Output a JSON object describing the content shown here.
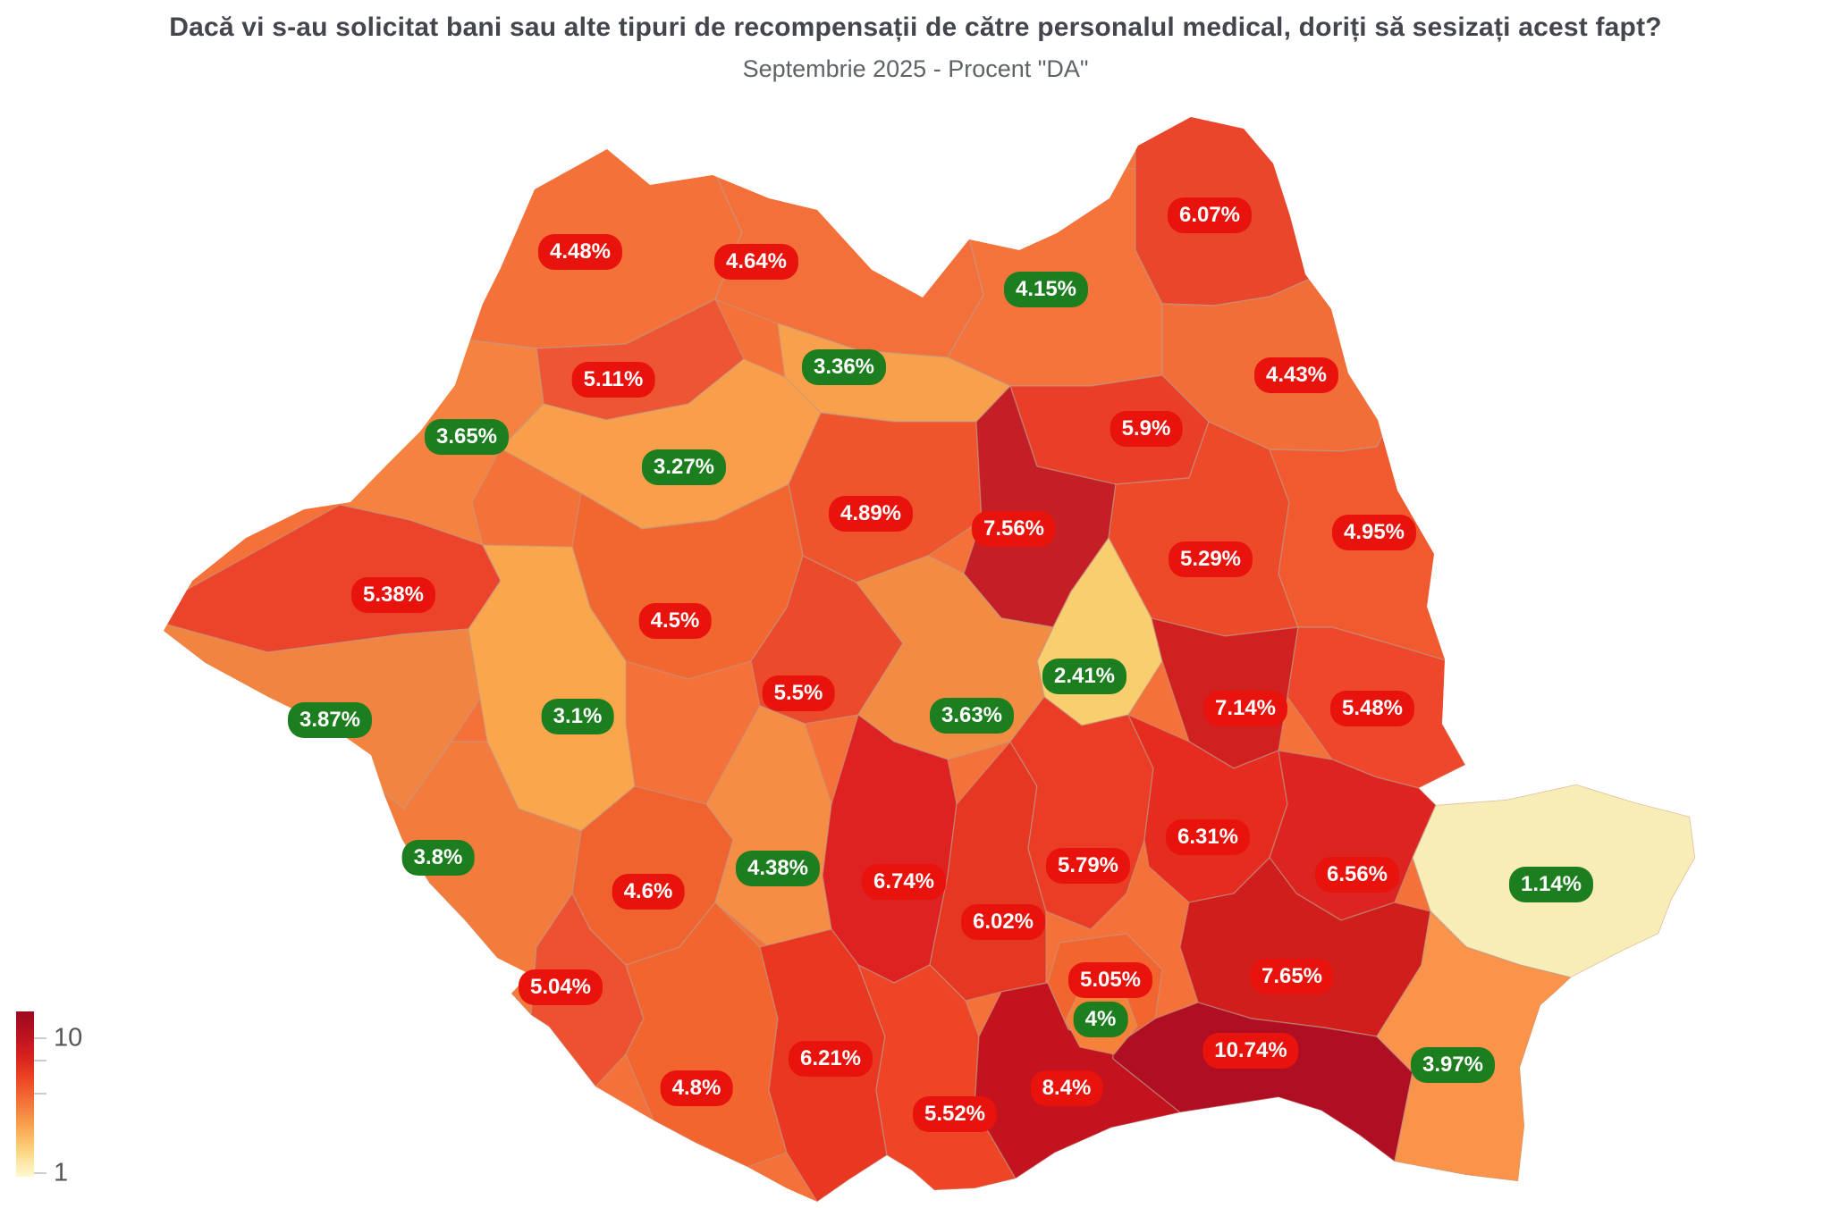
{
  "chart_data": {
    "type": "heatmap",
    "subtype": "choropleth-map",
    "geography": "Romania - judete (counties)",
    "title": "Dacă vi s-au solicitat bani sau alte tipuri de recompensații de către personalul medical, doriți să sesizați acest fapt?",
    "subtitle": "Septembrie 2025 - Procent \"DA\"",
    "unit": "%",
    "background": "#ffffff",
    "badge_colors": {
      "red": "#E8130D",
      "green": "#1C7E1F"
    },
    "legend": {
      "max_label": "10",
      "min_label": "1",
      "gradient_stops": [
        {
          "pos": 0,
          "color": "#9C0A21"
        },
        {
          "pos": 0.06,
          "color": "#A90D20"
        },
        {
          "pos": 0.16,
          "color": "#C01420"
        },
        {
          "pos": 0.28,
          "color": "#D8231E"
        },
        {
          "pos": 0.41,
          "color": "#EE4623"
        },
        {
          "pos": 0.56,
          "color": "#F4763A"
        },
        {
          "pos": 0.71,
          "color": "#F9A952"
        },
        {
          "pos": 0.83,
          "color": "#FCCF7A"
        },
        {
          "pos": 0.92,
          "color": "#FEE9A9"
        },
        {
          "pos": 1,
          "color": "#FEF7D0"
        }
      ],
      "ticks": [
        {
          "pos": 0.162,
          "label": "10"
        },
        {
          "pos": 0.297,
          "label": ""
        },
        {
          "pos": 0.497,
          "label": ""
        },
        {
          "pos": 0.978,
          "label": "1"
        }
      ]
    },
    "regions": [
      {
        "id": "sm",
        "county": "Satu Mare",
        "value": 4.48,
        "label": "4.48%",
        "badge": "red",
        "fill": "#F4713A"
      },
      {
        "id": "mm",
        "county": "Maramureș",
        "value": 4.64,
        "label": "4.64%",
        "badge": "red",
        "fill": "#F3703A"
      },
      {
        "id": "sv",
        "county": "Suceava",
        "value": 4.15,
        "label": "4.15%",
        "badge": "green",
        "fill": "#F4743C"
      },
      {
        "id": "bt",
        "county": "Botoșani",
        "value": 6.07,
        "label": "6.07%",
        "badge": "red",
        "fill": "#E9462C"
      },
      {
        "id": "is",
        "county": "Iași",
        "value": 4.43,
        "label": "4.43%",
        "badge": "red",
        "fill": "#F26E38"
      },
      {
        "id": "nt",
        "county": "Neamț",
        "value": 5.9,
        "label": "5.9%",
        "badge": "red",
        "fill": "#E93F28"
      },
      {
        "id": "bn",
        "county": "Bistrița-Năsăud",
        "value": 3.36,
        "label": "3.36%",
        "badge": "green",
        "fill": "#F9A04C"
      },
      {
        "id": "sj",
        "county": "Sălaj",
        "value": 5.11,
        "label": "5.11%",
        "badge": "red",
        "fill": "#EE5532"
      },
      {
        "id": "bh",
        "county": "Bihor",
        "value": 3.65,
        "label": "3.65%",
        "badge": "green",
        "fill": "#F5823F"
      },
      {
        "id": "cj",
        "county": "Cluj",
        "value": 3.27,
        "label": "3.27%",
        "badge": "green",
        "fill": "#F99F4B"
      },
      {
        "id": "ms",
        "county": "Mureș",
        "value": 4.89,
        "label": "4.89%",
        "badge": "red",
        "fill": "#EF552C"
      },
      {
        "id": "hr",
        "county": "Harghita",
        "value": 7.56,
        "label": "7.56%",
        "badge": "red",
        "fill": "#C41F26"
      },
      {
        "id": "bc",
        "county": "Bacău",
        "value": 5.29,
        "label": "5.29%",
        "badge": "red",
        "fill": "#ED4A2A"
      },
      {
        "id": "vs",
        "county": "Vaslui",
        "value": 4.95,
        "label": "4.95%",
        "badge": "red",
        "fill": "#F05A2E"
      },
      {
        "id": "ar",
        "county": "Arad",
        "value": 5.38,
        "label": "5.38%",
        "badge": "red",
        "fill": "#EC432B"
      },
      {
        "id": "ab",
        "county": "Alba",
        "value": 4.5,
        "label": "4.5%",
        "badge": "red",
        "fill": "#F2672F"
      },
      {
        "id": "cv",
        "county": "Covasna",
        "value": 2.41,
        "label": "2.41%",
        "badge": "green",
        "fill": "#F8CE6F"
      },
      {
        "id": "sb",
        "county": "Sibiu",
        "value": 5.5,
        "label": "5.5%",
        "badge": "red",
        "fill": "#EB4A2B"
      },
      {
        "id": "bv",
        "county": "Brașov",
        "value": 3.63,
        "label": "3.63%",
        "badge": "green",
        "fill": "#F28C42"
      },
      {
        "id": "vn",
        "county": "Vrancea",
        "value": 7.14,
        "label": "7.14%",
        "badge": "red",
        "fill": "#D02020"
      },
      {
        "id": "gl",
        "county": "Galați",
        "value": 5.48,
        "label": "5.48%",
        "badge": "red",
        "fill": "#EF472B"
      },
      {
        "id": "tm",
        "county": "Timiș",
        "value": 3.87,
        "label": "3.87%",
        "badge": "green",
        "fill": "#F28441"
      },
      {
        "id": "hd",
        "county": "Hunedoara",
        "value": 3.1,
        "label": "3.1%",
        "badge": "green",
        "fill": "#F9A64C"
      },
      {
        "id": "cs",
        "county": "Caraș-Severin",
        "value": 3.8,
        "label": "3.8%",
        "badge": "green",
        "fill": "#F37C3D"
      },
      {
        "id": "gj",
        "county": "Gorj",
        "value": 4.6,
        "label": "4.6%",
        "badge": "red",
        "fill": "#F0632F"
      },
      {
        "id": "vl",
        "county": "Vâlcea",
        "value": 4.38,
        "label": "4.38%",
        "badge": "green",
        "fill": "#F68D44"
      },
      {
        "id": "ag",
        "county": "Argeș",
        "value": 6.74,
        "label": "6.74%",
        "badge": "red",
        "fill": "#DE2121"
      },
      {
        "id": "db",
        "county": "Dâmbovița",
        "value": 6.02,
        "label": "6.02%",
        "badge": "red",
        "fill": "#E63722"
      },
      {
        "id": "ph",
        "county": "Prahova",
        "value": 5.79,
        "label": "5.79%",
        "badge": "red",
        "fill": "#EB3D25"
      },
      {
        "id": "bz",
        "county": "Buzău",
        "value": 6.31,
        "label": "6.31%",
        "badge": "red",
        "fill": "#E52C1E"
      },
      {
        "id": "br",
        "county": "Brăila",
        "value": 6.56,
        "label": "6.56%",
        "badge": "red",
        "fill": "#DC2520"
      },
      {
        "id": "tl",
        "county": "Tulcea",
        "value": 1.14,
        "label": "1.14%",
        "badge": "green",
        "fill": "#F8ECB7"
      },
      {
        "id": "mh",
        "county": "Mehedinți",
        "value": 5.04,
        "label": "5.04%",
        "badge": "red",
        "fill": "#EE5130"
      },
      {
        "id": "dj",
        "county": "Dolj",
        "value": 4.8,
        "label": "4.8%",
        "badge": "red",
        "fill": "#F2652F"
      },
      {
        "id": "ot",
        "county": "Olt",
        "value": 6.21,
        "label": "6.21%",
        "badge": "red",
        "fill": "#E93722"
      },
      {
        "id": "tr",
        "county": "Teleorman",
        "value": 5.52,
        "label": "5.52%",
        "badge": "red",
        "fill": "#EE4526"
      },
      {
        "id": "gr",
        "county": "Giurgiu",
        "value": 8.4,
        "label": "8.4%",
        "badge": "red",
        "fill": "#C2131E"
      },
      {
        "id": "if",
        "county": "Ilfov",
        "value": 5.05,
        "label": "5.05%",
        "badge": "red",
        "fill": "#F3652F"
      },
      {
        "id": "il",
        "county": "Ialomița",
        "value": 7.65,
        "label": "7.65%",
        "badge": "red",
        "fill": "#D01E1C"
      },
      {
        "id": "cl",
        "county": "Călărași",
        "value": 10.74,
        "label": "10.74%",
        "badge": "red",
        "fill": "#B00E22"
      },
      {
        "id": "ct",
        "county": "Constanța",
        "value": 3.97,
        "label": "3.97%",
        "badge": "green",
        "fill": "#F9944A"
      },
      {
        "id": "b",
        "county": "București",
        "value": 4,
        "label": "4%",
        "badge": "green",
        "fill": "#F58238"
      }
    ]
  }
}
